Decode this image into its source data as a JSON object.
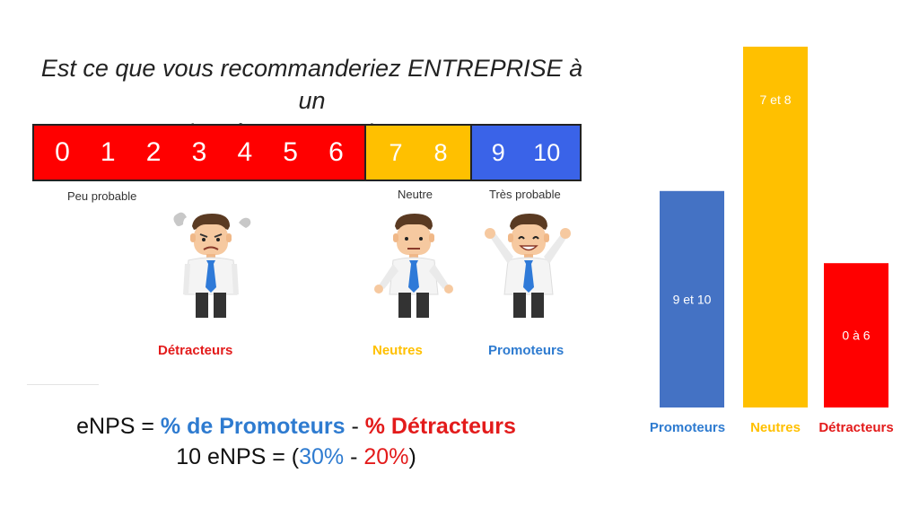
{
  "question": {
    "line1": "Est ce que vous recommanderiez ENTREPRISE à un",
    "line2": "ami ou à une connaissance ?"
  },
  "scale": {
    "detractor_numbers": [
      "0",
      "1",
      "2",
      "3",
      "4",
      "5",
      "6"
    ],
    "passive_numbers": [
      "7",
      "8"
    ],
    "promoter_numbers": [
      "9",
      "10"
    ],
    "label_low": "Peu probable",
    "label_mid": "Neutre",
    "label_high": "Très probable"
  },
  "categories": {
    "detracteurs": "Détracteurs",
    "neutres": "Neutres",
    "promoteurs": "Promoteurs"
  },
  "formula": {
    "line1": {
      "prefix": "eNPS = ",
      "promoters": "% de Promoteurs",
      "minus": " - ",
      "detractors": "% Détracteurs"
    },
    "line2": {
      "prefix": "10 eNPS = (",
      "promoters_pct": "30%",
      "minus": " - ",
      "detractors_pct": "20%",
      "suffix": ")"
    }
  },
  "colors": {
    "red": "#ff0000",
    "yellow": "#ffc000",
    "blue": "#4472c4",
    "scale_blue": "#3a63e8"
  },
  "chart_data": {
    "type": "bar",
    "categories": [
      "Promoteurs",
      "Neutres",
      "Détracteurs"
    ],
    "values": [
      30,
      50,
      20
    ],
    "bar_labels": [
      "9 et 10",
      "7 et 8",
      "0 à 6"
    ],
    "colors": [
      "#4472c4",
      "#ffc000",
      "#ff0000"
    ],
    "ylim": [
      0,
      50
    ],
    "grid": false,
    "title": "",
    "xlabel": "",
    "ylabel": ""
  }
}
